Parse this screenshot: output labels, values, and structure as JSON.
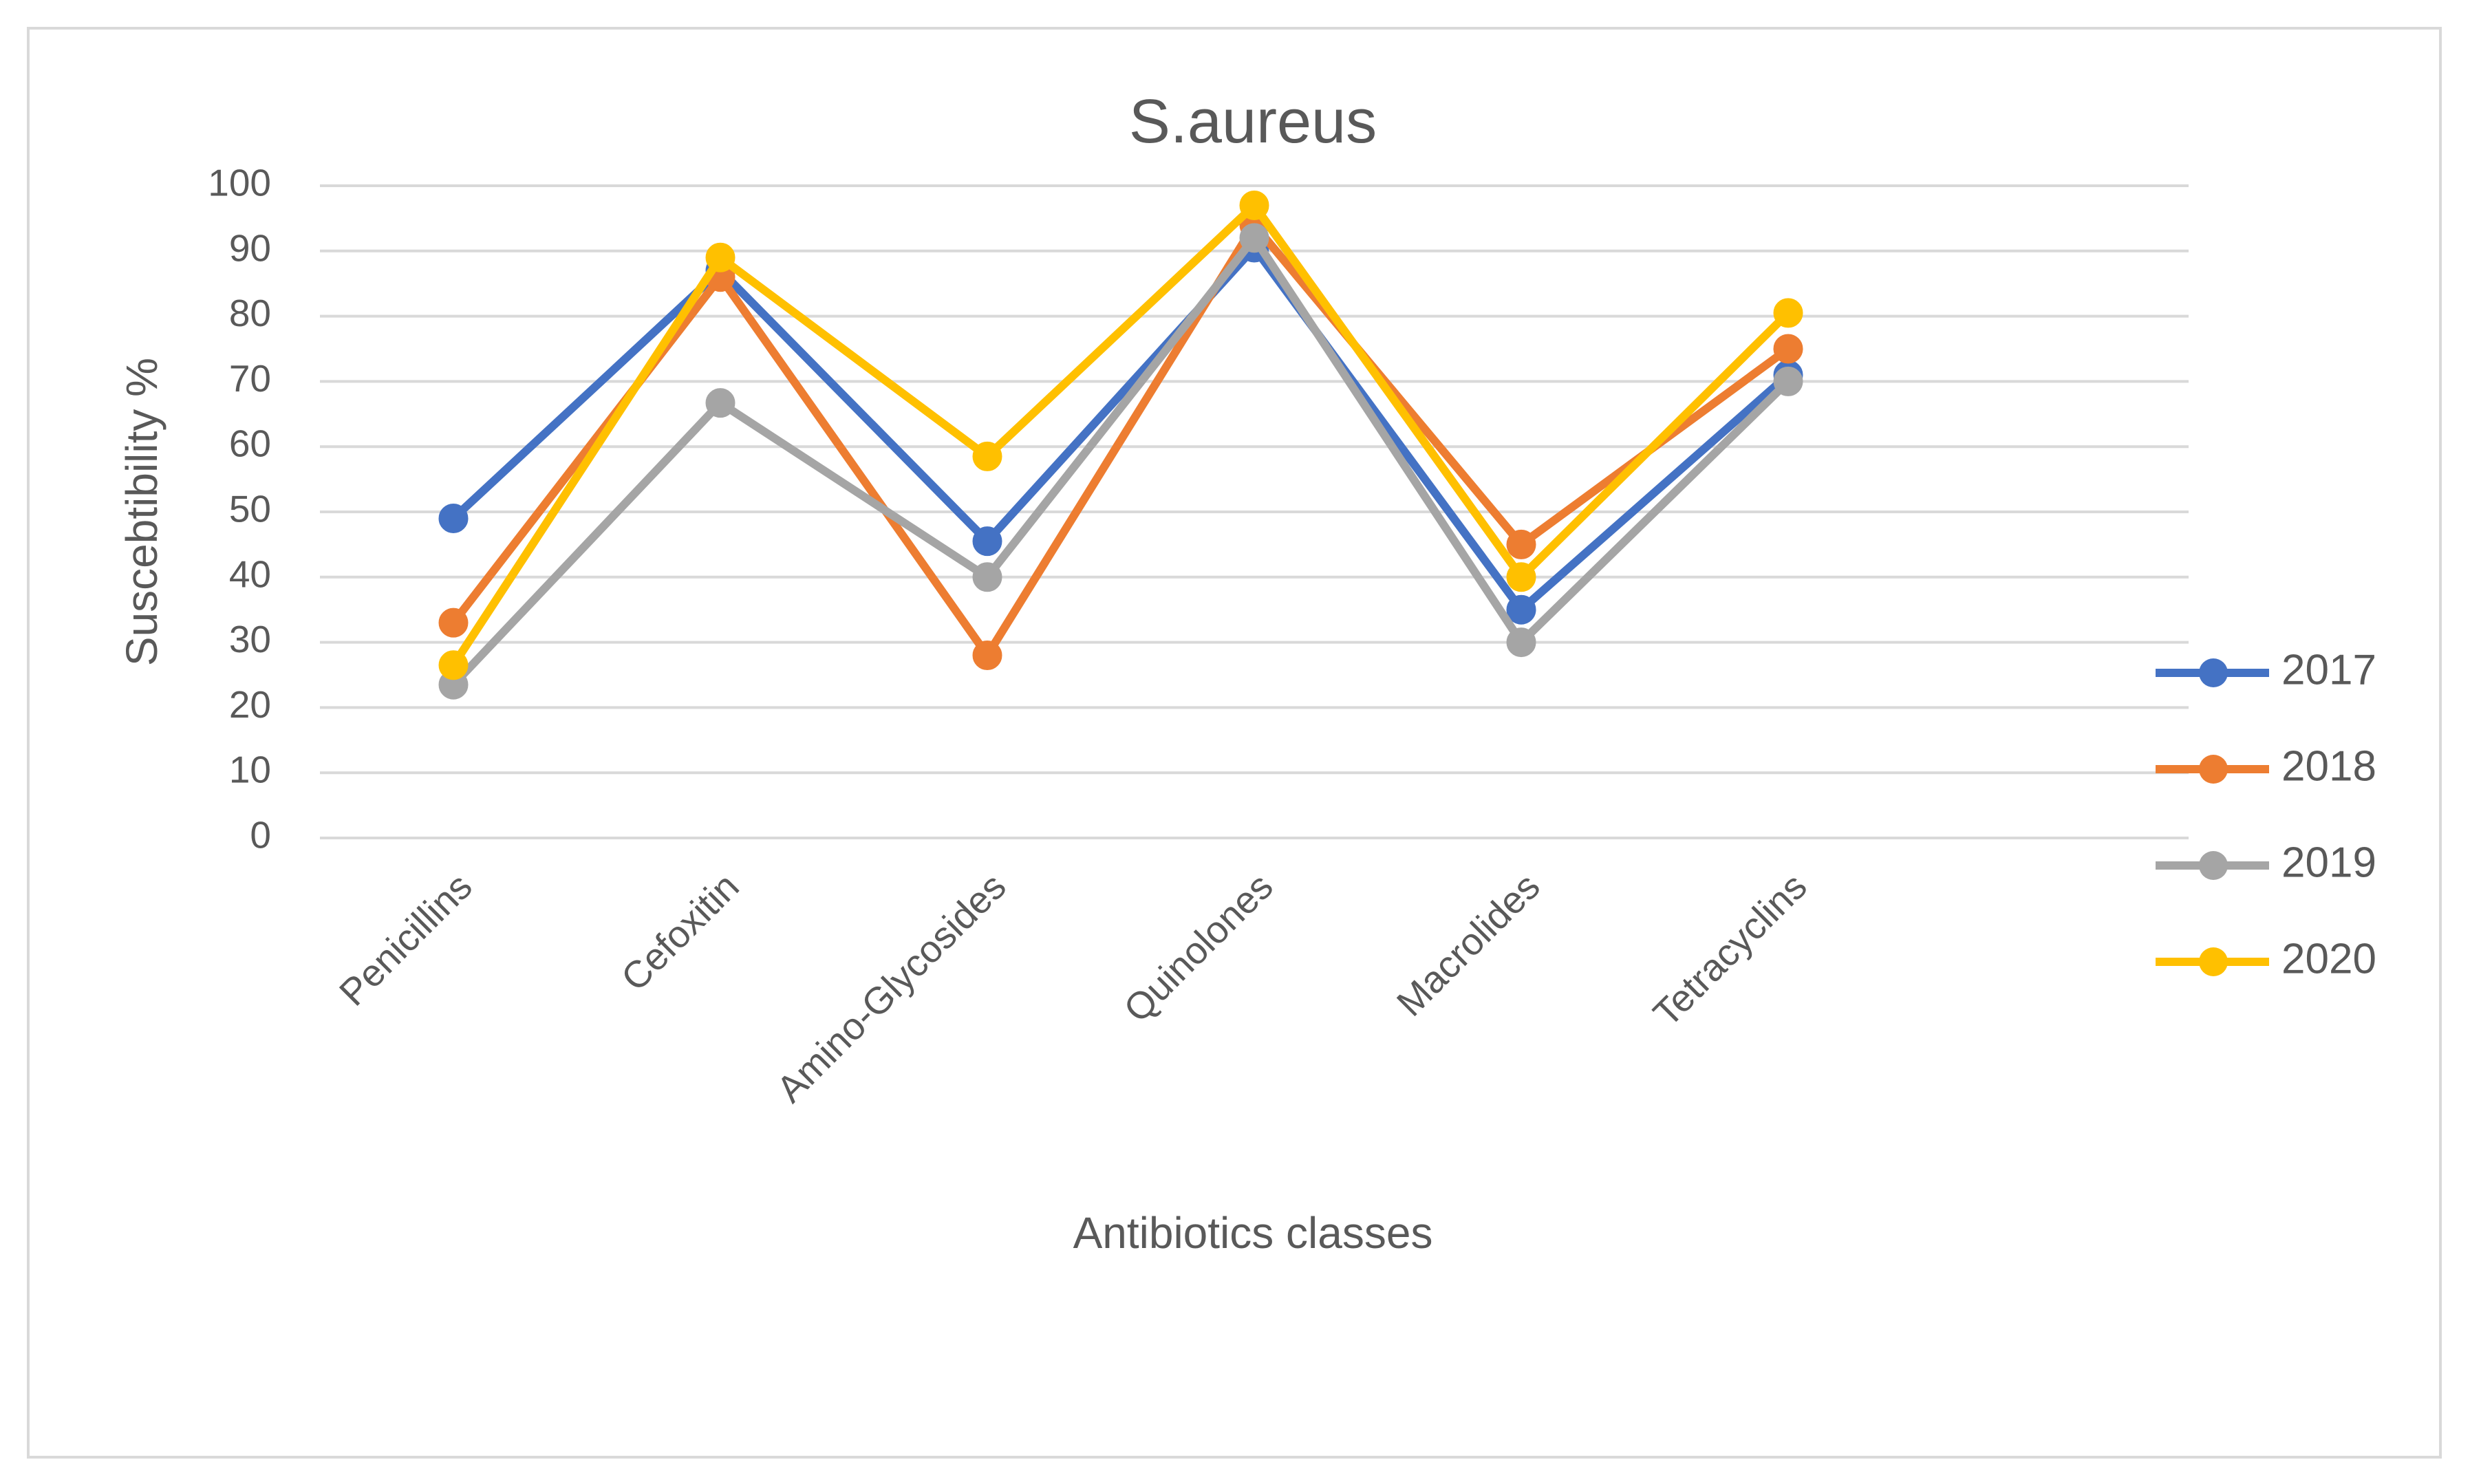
{
  "chart_data": {
    "type": "line",
    "title": "S.aureus",
    "x_label": "Antibiotics classes",
    "y_label": "Suscebtibility %",
    "categories": [
      "Penicillins",
      "Cefoxitin",
      "Amino-Glycosides",
      "Quinolones",
      "Macrolides",
      "Tetracyclins",
      null
    ],
    "series": [
      {
        "name": "2017",
        "color": "#4472c4",
        "values": [
          49,
          87,
          45.5,
          90.5,
          35,
          71,
          null
        ]
      },
      {
        "name": "2018",
        "color": "#ed7d31",
        "values": [
          33,
          86,
          28,
          94,
          45,
          75,
          null
        ]
      },
      {
        "name": "2019",
        "color": "#a5a5a5",
        "values": [
          23.5,
          66.7,
          40,
          92,
          30,
          70,
          null
        ]
      },
      {
        "name": "2020",
        "color": "#ffc000",
        "values": [
          26.5,
          89,
          58.5,
          97,
          40,
          80.5,
          null
        ]
      }
    ],
    "ylim": [
      0,
      100
    ],
    "yticks": [
      0,
      10,
      20,
      30,
      40,
      50,
      60,
      70,
      80,
      90,
      100
    ],
    "grid": true,
    "legend": "right"
  }
}
